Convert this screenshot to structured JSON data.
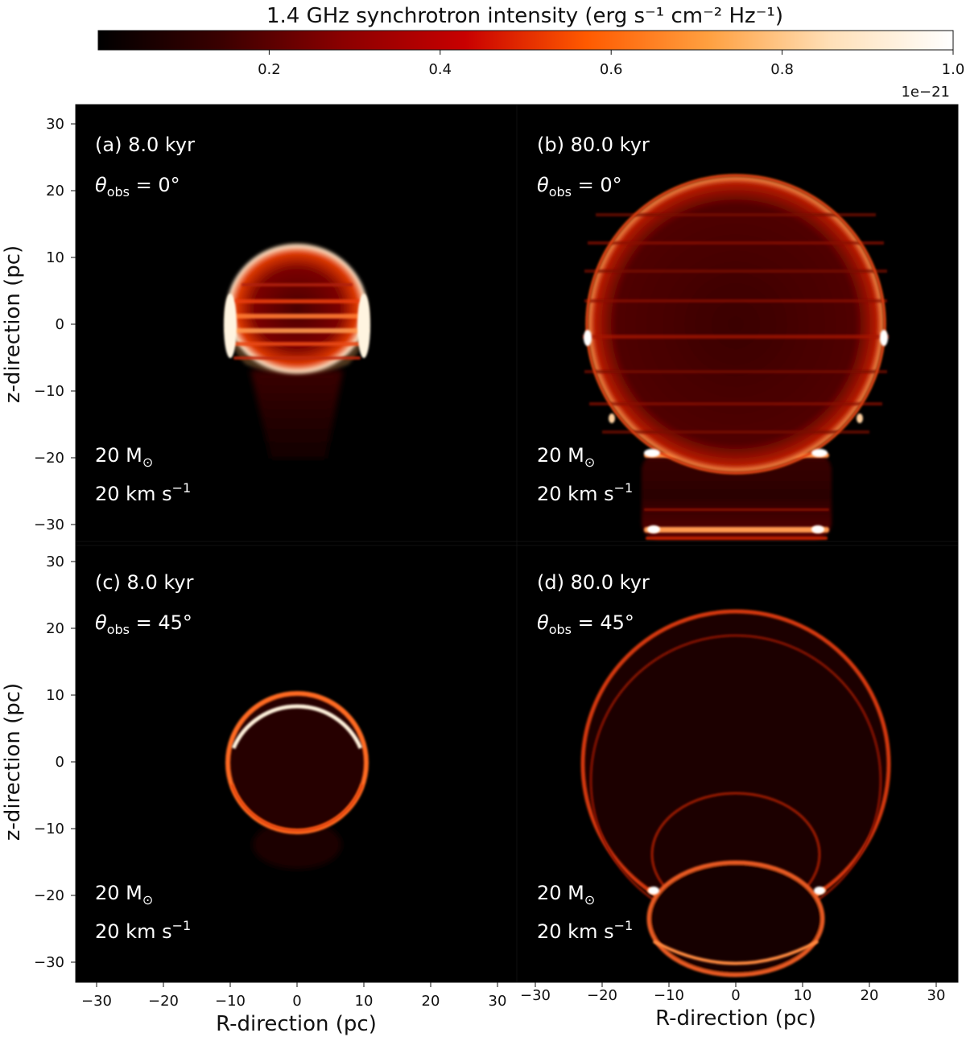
{
  "colorbar": {
    "title": "1.4 GHz synchrotron intensity (erg s⁻¹ cm⁻² Hz⁻¹)",
    "ticks": [
      {
        "value": 0.2,
        "label": "0.2"
      },
      {
        "value": 0.4,
        "label": "0.4"
      },
      {
        "value": 0.6,
        "label": "0.6"
      },
      {
        "value": 0.8,
        "label": "0.8"
      },
      {
        "value": 1.0,
        "label": "1.0"
      }
    ],
    "range": [
      0,
      1.0
    ],
    "offset_label": "1e−21",
    "colormap": [
      "#000000",
      "#3a0000",
      "#8b0000",
      "#c80000",
      "#ff5a00",
      "#ffa040",
      "#ffe0b8",
      "#ffffff"
    ]
  },
  "axes": {
    "xlabel": "R-direction (pc)",
    "ylabel": "z-direction (pc)",
    "xticks": [
      -30,
      -20,
      -10,
      0,
      10,
      20,
      30
    ],
    "yticks": [
      30,
      20,
      10,
      0,
      -10,
      -20,
      -30
    ],
    "xlim": [
      -33,
      33
    ],
    "ylim": [
      -33,
      33
    ]
  },
  "panels": [
    {
      "id": "a",
      "label": "(a) 8.0 kyr",
      "theta_symbol": "θ",
      "theta_sub": "obs",
      "theta_value": " = 0°",
      "mass_value": "20 M",
      "mass_symbol": "⊙",
      "speed_value": "20 km s",
      "speed_sup": "−1"
    },
    {
      "id": "b",
      "label": "(b) 80.0 kyr",
      "theta_symbol": "θ",
      "theta_sub": "obs",
      "theta_value": " = 0°",
      "mass_value": "20 M",
      "mass_symbol": "⊙",
      "speed_value": "20 km s",
      "speed_sup": "−1"
    },
    {
      "id": "c",
      "label": "(c) 8.0 kyr",
      "theta_symbol": "θ",
      "theta_sub": "obs",
      "theta_value": " = 45°",
      "mass_value": "20 M",
      "mass_symbol": "⊙",
      "speed_value": "20 km s",
      "speed_sup": "−1"
    },
    {
      "id": "d",
      "label": "(d) 80.0 kyr",
      "theta_symbol": "θ",
      "theta_sub": "obs",
      "theta_value": " = 45°",
      "mass_value": "20 M",
      "mass_symbol": "⊙",
      "speed_value": "20 km s",
      "speed_sup": "−1"
    }
  ],
  "chart_data": [
    {
      "type": "heatmap",
      "panel": "a",
      "title": "(a) 8.0 kyr",
      "xlabel": "",
      "ylabel": "z-direction (pc)",
      "xlim": [
        -33,
        33
      ],
      "ylim": [
        -33,
        33
      ],
      "features": {
        "bubble": {
          "center_R": 0,
          "center_z": 0,
          "radius": 10.5,
          "lower_cap_z": -7,
          "edge_intensity": 1.0,
          "interior_intensity": 0.45
        },
        "tail": {
          "top_z": -7,
          "bottom_z": -20,
          "half_width_top": 7,
          "half_width_bottom": 4,
          "intensity": 0.12
        }
      }
    },
    {
      "type": "heatmap",
      "panel": "b",
      "title": "(b) 80.0 kyr",
      "xlabel": "",
      "ylabel": "",
      "xlim": [
        -33,
        33
      ],
      "ylim": [
        -33,
        33
      ],
      "features": {
        "bubble": {
          "center_R": 0,
          "center_z": 0,
          "radius": 22,
          "lower_cap_z": -19.5,
          "edge_intensity": 0.9,
          "interior_intensity": 0.38
        },
        "tail": {
          "top_z": -19.5,
          "bottom_z": -32,
          "half_width": 14,
          "intensity": 0.3,
          "bright_band_z": [
            -19.5,
            -30.5
          ]
        }
      }
    },
    {
      "type": "heatmap",
      "panel": "c",
      "title": "(c) 8.0 kyr",
      "xlabel": "R-direction (pc)",
      "ylabel": "z-direction (pc)",
      "xlim": [
        -33,
        33
      ],
      "ylim": [
        -33,
        33
      ],
      "features": {
        "rings": [
          {
            "center_R": 0,
            "center_z": 0,
            "radius": 10.5,
            "intensity": 1.0
          }
        ],
        "faint_tail_z": [
          -10,
          -15
        ]
      }
    },
    {
      "type": "heatmap",
      "panel": "d",
      "title": "(d) 80.0 kyr",
      "xlabel": "R-direction (pc)",
      "ylabel": "",
      "xlim": [
        -33,
        33
      ],
      "ylim": [
        -33,
        33
      ],
      "features": {
        "rings": [
          {
            "center_R": 0,
            "center_z": 0,
            "radius": 23,
            "intensity": 0.9
          },
          {
            "center_R": 0,
            "center_z": -3,
            "radius": 22,
            "intensity": 0.35
          },
          {
            "center_R": 0,
            "center_z": -16,
            "radius": 12.5,
            "intensity": 0.55
          },
          {
            "center_R": 0,
            "center_z": -22,
            "radius": 12,
            "intensity": 0.8
          }
        ]
      }
    }
  ]
}
